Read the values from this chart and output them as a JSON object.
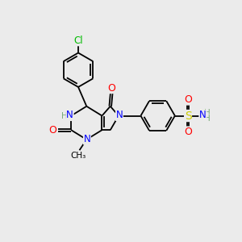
{
  "background_color": "#ebebeb",
  "bond_color": "#000000",
  "atom_colors": {
    "N": "#0000ff",
    "O": "#ff0000",
    "S": "#cccc00",
    "Cl": "#00bb00",
    "H": "#7aaa7a",
    "C": "#000000"
  },
  "font_size": 8,
  "figsize": [
    3.0,
    3.0
  ],
  "dpi": 100,
  "lw": 1.3
}
